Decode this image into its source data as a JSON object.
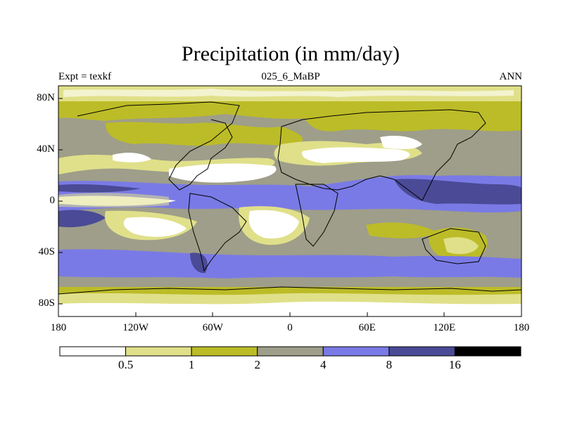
{
  "title": "Precipitation (in mm/day)",
  "left_label": "Expt = texkf",
  "center_label": "025_6_MaBP",
  "right_label": "ANN",
  "x_ticks": [
    {
      "value": -180,
      "label": "180"
    },
    {
      "value": -120,
      "label": "120W"
    },
    {
      "value": -60,
      "label": "60W"
    },
    {
      "value": 0,
      "label": "0"
    },
    {
      "value": 60,
      "label": "60E"
    },
    {
      "value": 120,
      "label": "120E"
    },
    {
      "value": 180,
      "label": "180"
    }
  ],
  "y_ticks": [
    {
      "value": 80,
      "label": "80N"
    },
    {
      "value": 40,
      "label": "40N"
    },
    {
      "value": 0,
      "label": "0"
    },
    {
      "value": -40,
      "label": "40S"
    },
    {
      "value": -80,
      "label": "80S"
    }
  ],
  "colorbar": {
    "colors": [
      "#ffffff",
      "#e0e08a",
      "#bcbc28",
      "#9e9e8a",
      "#7a7ae6",
      "#4a4a96",
      "#000000"
    ],
    "levels": [
      "0.5",
      "1",
      "2",
      "4",
      "8",
      "16"
    ]
  },
  "map": {
    "lon_range": [
      -180,
      180
    ],
    "lat_range": [
      -90,
      90
    ]
  }
}
